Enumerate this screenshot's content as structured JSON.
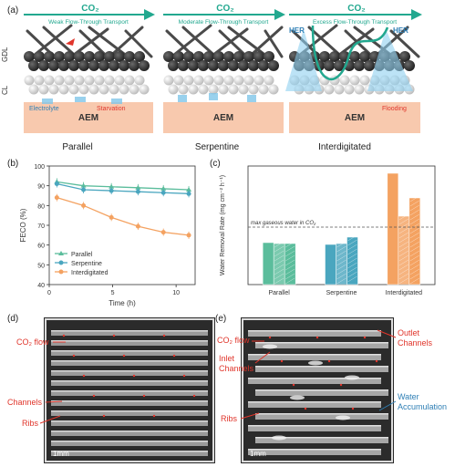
{
  "panel_a": {
    "label": "(a)",
    "co2": "CO₂",
    "schematics": [
      {
        "name": "Parallel",
        "flow_text": "Weak Flow-Through Transport",
        "left_annot": "Electrolyte",
        "right_annot": "Starvation",
        "aem": "AEM"
      },
      {
        "name": "Serpentine",
        "flow_text": "Moderate Flow-Through Transport",
        "aem": "AEM"
      },
      {
        "name": "Interdigitated",
        "flow_text": "Excess Flow-Through Transport",
        "her_left": "HER",
        "her_right": "HER",
        "right_annot": "Flooding",
        "aem": "AEM"
      }
    ],
    "side_labels": [
      "GDL",
      "CL"
    ]
  },
  "panel_b": {
    "label": "(b)",
    "chart_data": {
      "type": "line",
      "xlabel": "Time (h)",
      "ylabel": "FECO (%)",
      "xlim": [
        0,
        11.5
      ],
      "ylim": [
        40,
        100
      ],
      "yticks": [
        40,
        50,
        60,
        70,
        80,
        90,
        100
      ],
      "xticks": [
        0,
        5,
        10
      ],
      "series": [
        {
          "name": "Parallel",
          "color": "#5bbd9c",
          "x": [
            0.6,
            2.7,
            4.9,
            7.0,
            9.0,
            11.0
          ],
          "y": [
            92,
            90,
            89.5,
            89,
            88.5,
            88
          ]
        },
        {
          "name": "Serpentine",
          "color": "#4aa6bf",
          "x": [
            0.6,
            2.7,
            4.9,
            7.0,
            9.0,
            11.0
          ],
          "y": [
            91,
            88,
            87.5,
            87,
            86.5,
            86
          ]
        },
        {
          "name": "Interdigitated",
          "color": "#f4a261",
          "x": [
            0.6,
            2.7,
            4.9,
            7.0,
            9.0,
            11.0
          ],
          "y": [
            84,
            80,
            74,
            69.5,
            66.5,
            65
          ]
        }
      ]
    }
  },
  "panel_c": {
    "label": "(c)",
    "chart_data": {
      "type": "bar",
      "ylabel": "Water Removal Rate (mg cm⁻² h⁻¹)",
      "categories": [
        "Parallel",
        "Serpentine",
        "Interdigitated"
      ],
      "values": [
        [
          46,
          45,
          45
        ],
        [
          44,
          45,
          52
        ],
        [
          122,
          75,
          95
        ]
      ],
      "ylim": [
        0,
        130
      ],
      "threshold": 63,
      "threshold_label": "max gaseous water in CO₂",
      "colors": [
        "#5bbd9c",
        "#4aa6bf",
        "#f4a261"
      ]
    }
  },
  "panel_d": {
    "label": "(d)",
    "labels": [
      "CO₂ flow",
      "Channels",
      "Ribs"
    ],
    "scale": "1mm"
  },
  "panel_e": {
    "label": "(e)",
    "labels": [
      "CO₂ flow",
      "Inlet Channels",
      "Ribs",
      "Outlet Channels",
      "Water Accumulation"
    ],
    "scale": "1mm"
  }
}
